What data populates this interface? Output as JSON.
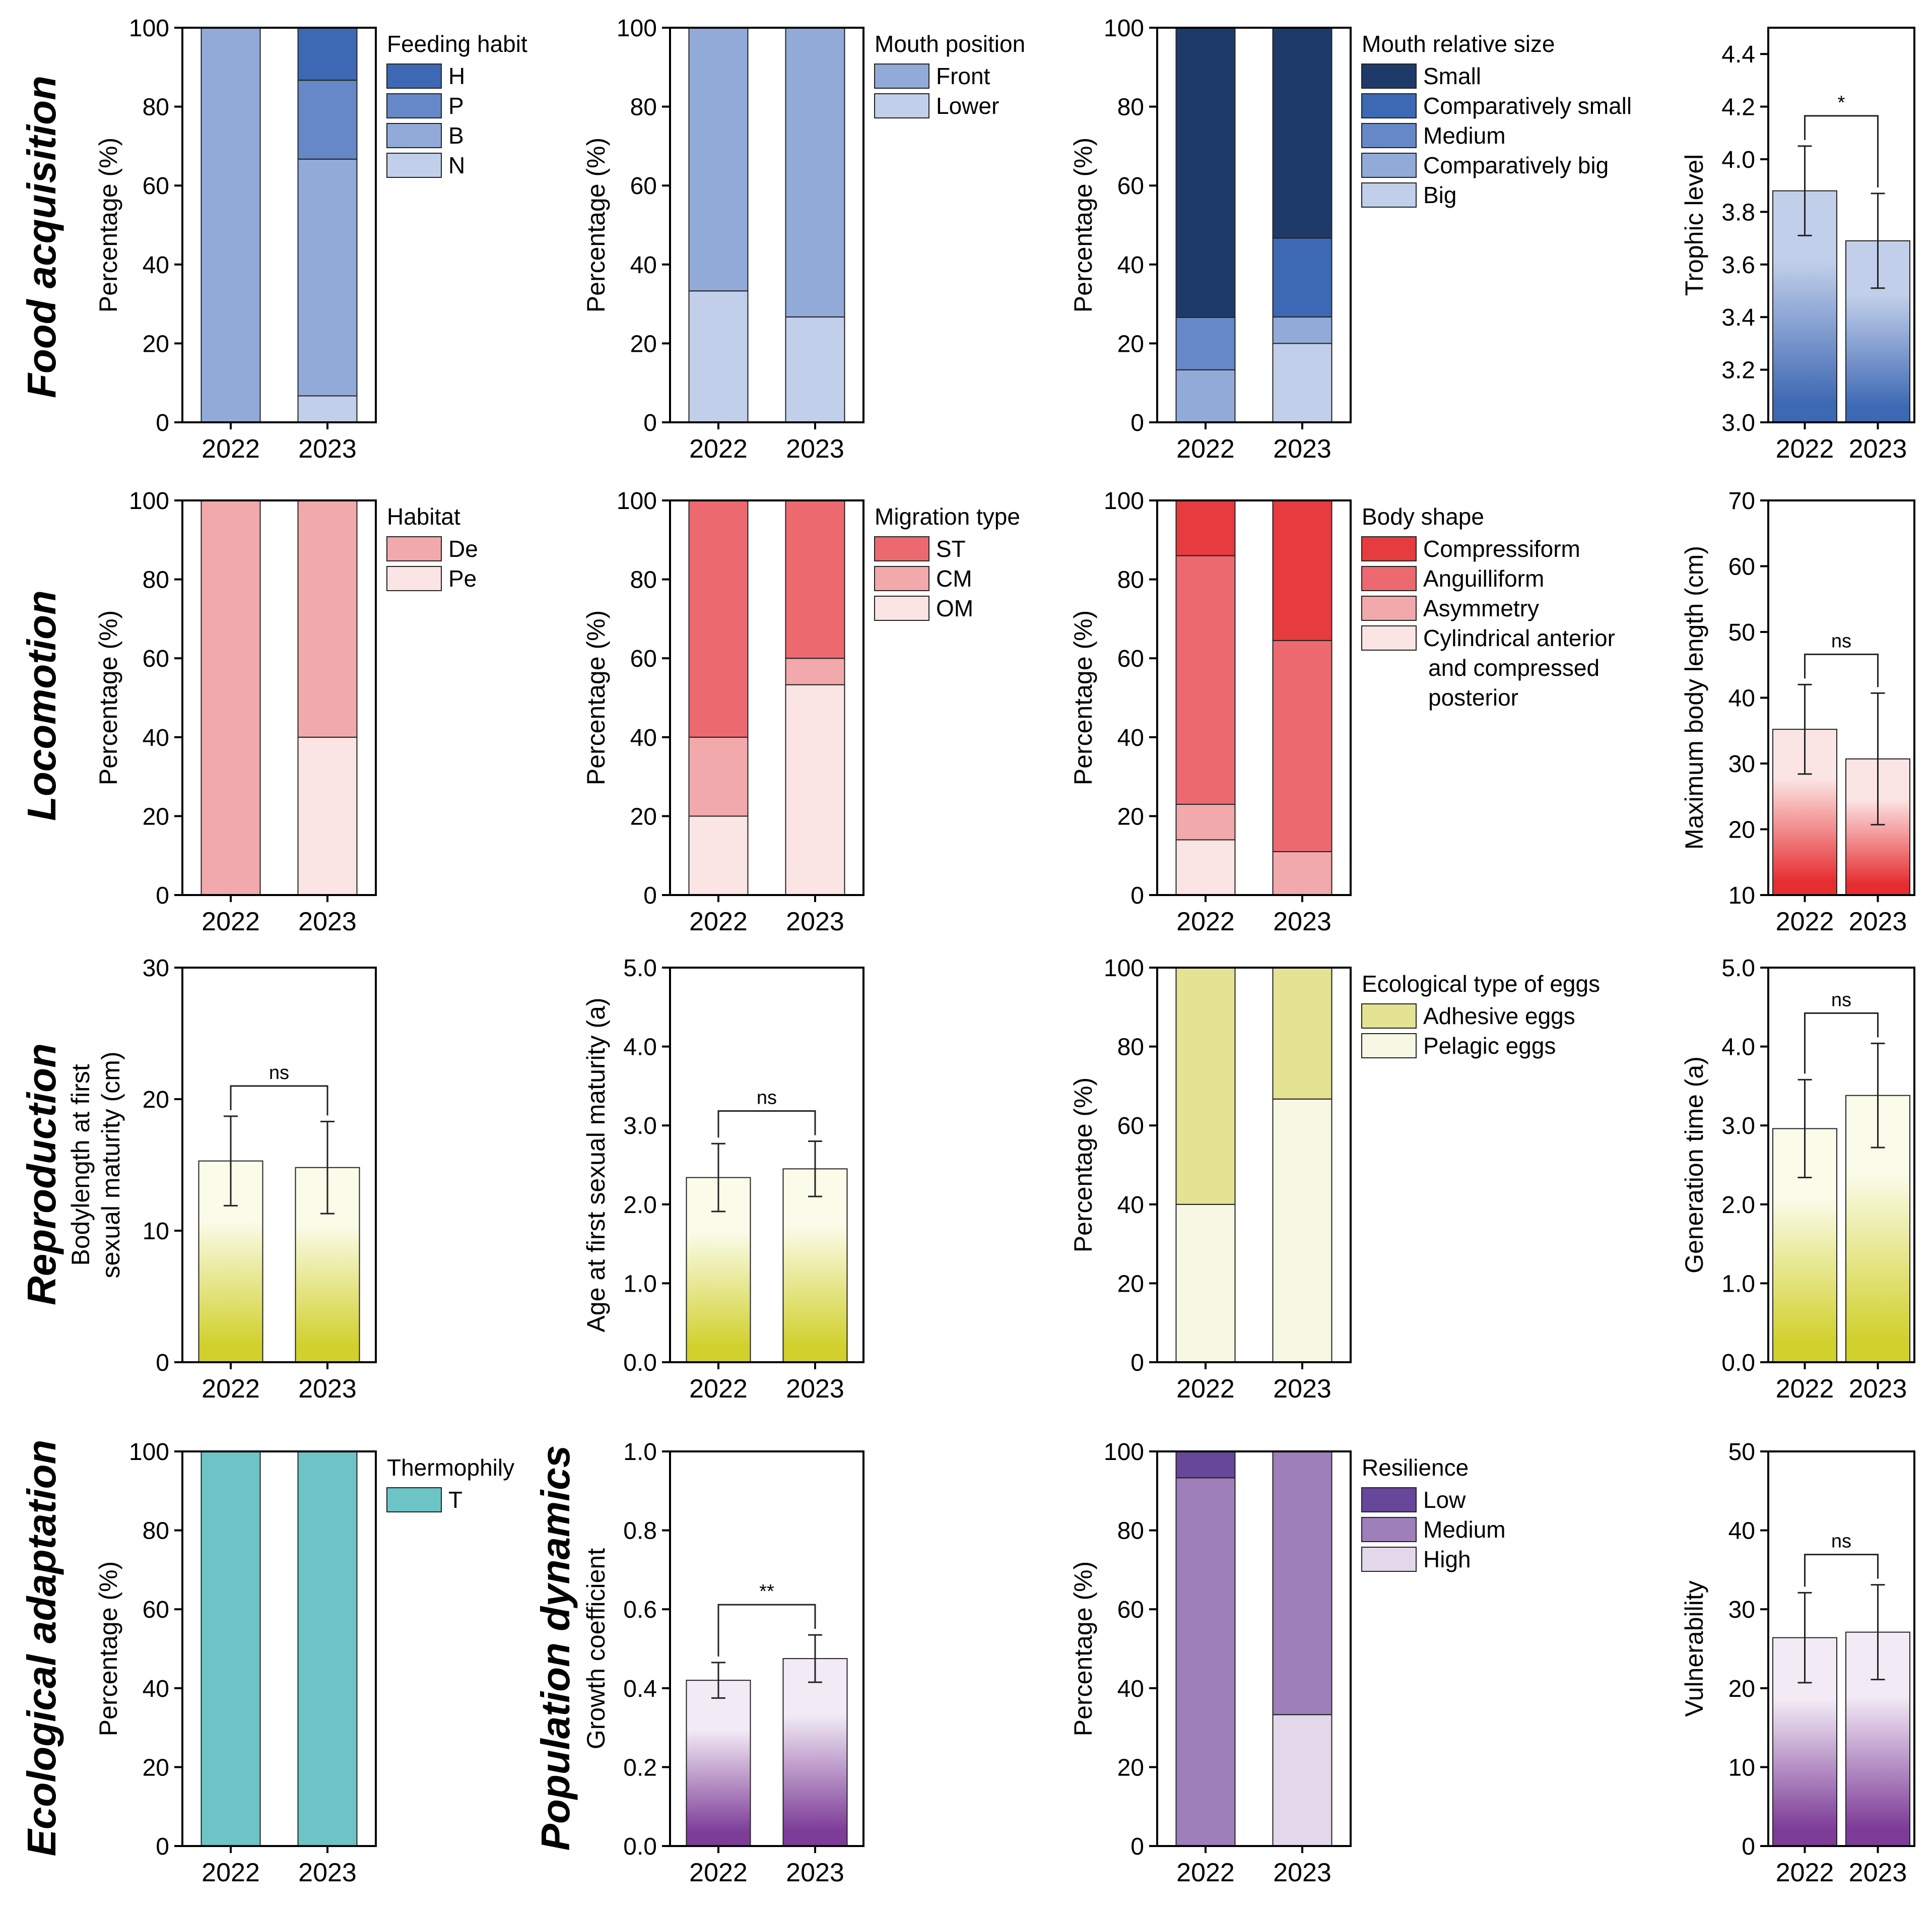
{
  "row_titles": [
    "Food acquisition",
    "Locomotion",
    "Reproduction",
    "Ecological adaptation",
    "Population dynamics"
  ],
  "chart_data": [
    {
      "id": "feeding",
      "type": "stacked_bar",
      "row": 0,
      "col": 0,
      "ylabel": "Percentage (%)",
      "ylim": [
        0,
        100
      ],
      "yticks": [
        "0",
        "20",
        "40",
        "60",
        "80",
        "100"
      ],
      "categories": [
        "2022",
        "2023"
      ],
      "legend_title": "Feeding habit",
      "series": [
        {
          "name": "N",
          "color": "#c2cfea",
          "values": [
            0,
            6.7
          ]
        },
        {
          "name": "B",
          "color": "#91aad8",
          "values": [
            100,
            60
          ]
        },
        {
          "name": "P",
          "color": "#6688c6",
          "values": [
            0,
            20
          ]
        },
        {
          "name": "H",
          "color": "#3d68b3",
          "values": [
            0,
            13.3
          ]
        }
      ],
      "legend": [
        {
          "name": "H",
          "color": "#3d68b3"
        },
        {
          "name": "P",
          "color": "#6688c6"
        },
        {
          "name": "B",
          "color": "#91aad8"
        },
        {
          "name": "N",
          "color": "#c2cfea"
        }
      ]
    },
    {
      "id": "mouthpos",
      "type": "stacked_bar",
      "row": 0,
      "col": 1,
      "ylabel": "Percentage (%)",
      "ylim": [
        0,
        100
      ],
      "yticks": [
        "0",
        "20",
        "40",
        "60",
        "80",
        "100"
      ],
      "categories": [
        "2022",
        "2023"
      ],
      "legend_title": "Mouth position",
      "series": [
        {
          "name": "Lower",
          "color": "#c2cfea",
          "values": [
            33.3,
            26.7
          ]
        },
        {
          "name": "Front",
          "color": "#91aad8",
          "values": [
            66.7,
            73.3
          ]
        }
      ],
      "legend": [
        {
          "name": "Front",
          "color": "#91aad8"
        },
        {
          "name": "Lower",
          "color": "#c2cfea"
        }
      ]
    },
    {
      "id": "mouthsize",
      "type": "stacked_bar",
      "row": 0,
      "col": 2,
      "ylabel": "Percentage (%)",
      "ylim": [
        0,
        100
      ],
      "yticks": [
        "0",
        "20",
        "40",
        "60",
        "80",
        "100"
      ],
      "categories": [
        "2022",
        "2023"
      ],
      "legend_title": "Mouth relative size",
      "series": [
        {
          "name": "Big",
          "color": "#c2cfea",
          "values": [
            0,
            20
          ]
        },
        {
          "name": "Comparatively big",
          "color": "#91aad8",
          "values": [
            13.3,
            6.7
          ]
        },
        {
          "name": "Medium",
          "color": "#6688c6",
          "values": [
            13.3,
            0
          ]
        },
        {
          "name": "Comparatively small",
          "color": "#3d68b3",
          "values": [
            0,
            20
          ]
        },
        {
          "name": "Small",
          "color": "#1e3a68",
          "values": [
            73.3,
            53.3
          ]
        }
      ],
      "legend": [
        {
          "name": "Small",
          "color": "#1e3a68"
        },
        {
          "name": "Comparatively small",
          "color": "#3d68b3"
        },
        {
          "name": "Medium",
          "color": "#6688c6"
        },
        {
          "name": "Comparatively big",
          "color": "#91aad8"
        },
        {
          "name": "Big",
          "color": "#c2cfea"
        }
      ]
    },
    {
      "id": "trophic",
      "type": "bar",
      "row": 0,
      "col": 3,
      "ylabel": "Trophic level",
      "ylim": [
        3.0,
        4.5
      ],
      "yticks": [
        "3.0",
        "3.2",
        "3.4",
        "3.6",
        "3.8",
        "4.0",
        "4.2",
        "4.4"
      ],
      "categories": [
        "2022",
        "2023"
      ],
      "values": [
        3.88,
        3.69
      ],
      "errors": [
        0.17,
        0.18
      ],
      "significance": "*",
      "gradient": [
        "#c2cfea",
        "#3d68b3"
      ]
    },
    {
      "id": "habitat",
      "type": "stacked_bar",
      "row": 1,
      "col": 0,
      "ylabel": "Percentage (%)",
      "ylim": [
        0,
        100
      ],
      "yticks": [
        "0",
        "20",
        "40",
        "60",
        "80",
        "100"
      ],
      "categories": [
        "2022",
        "2023"
      ],
      "legend_title": "Habitat",
      "series": [
        {
          "name": "Pe",
          "color": "#fbe4e4",
          "values": [
            0,
            40
          ]
        },
        {
          "name": "De",
          "color": "#f2a9ab",
          "values": [
            100,
            60
          ]
        }
      ],
      "legend": [
        {
          "name": "De",
          "color": "#f2a9ab"
        },
        {
          "name": "Pe",
          "color": "#fbe4e4"
        }
      ]
    },
    {
      "id": "migration",
      "type": "stacked_bar",
      "row": 1,
      "col": 1,
      "ylabel": "Percentage (%)",
      "ylim": [
        0,
        100
      ],
      "yticks": [
        "0",
        "20",
        "40",
        "60",
        "80",
        "100"
      ],
      "categories": [
        "2022",
        "2023"
      ],
      "legend_title": "Migration type",
      "series": [
        {
          "name": "OM",
          "color": "#fbe4e4",
          "values": [
            20,
            53.3
          ]
        },
        {
          "name": "CM",
          "color": "#f2a9ab",
          "values": [
            20,
            6.7
          ]
        },
        {
          "name": "ST",
          "color": "#ec6a6f",
          "values": [
            60,
            40
          ]
        }
      ],
      "legend": [
        {
          "name": "ST",
          "color": "#ec6a6f"
        },
        {
          "name": "CM",
          "color": "#f2a9ab"
        },
        {
          "name": "OM",
          "color": "#fbe4e4"
        }
      ]
    },
    {
      "id": "bodyshape",
      "type": "stacked_bar",
      "row": 1,
      "col": 2,
      "ylabel": "Percentage (%)",
      "ylim": [
        0,
        100
      ],
      "yticks": [
        "0",
        "20",
        "40",
        "60",
        "80",
        "100"
      ],
      "categories": [
        "2022",
        "2023"
      ],
      "legend_title": "Body shape",
      "series": [
        {
          "name": "Cylindrical anterior and compressed posterior",
          "color": "#fbe4e4",
          "values": [
            14,
            0
          ]
        },
        {
          "name": "Asymmetry",
          "color": "#f2a9ab",
          "values": [
            9,
            11
          ]
        },
        {
          "name": "Anguilliform",
          "color": "#ec6a6f",
          "values": [
            63,
            53.5
          ]
        },
        {
          "name": "Compressiform",
          "color": "#e63b3f",
          "values": [
            14,
            35.5
          ]
        }
      ],
      "legend": [
        {
          "name": "Compressiform",
          "color": "#e63b3f"
        },
        {
          "name": "Anguilliform",
          "color": "#ec6a6f"
        },
        {
          "name": "Asymmetry",
          "color": "#f2a9ab"
        },
        {
          "name": "Cylindrical anterior",
          "color": "#fbe4e4"
        }
      ],
      "legend_extra": [
        "and compressed",
        "posterior"
      ]
    },
    {
      "id": "bodylength",
      "type": "bar",
      "row": 1,
      "col": 3,
      "ylabel": "Maximum body length (cm)",
      "ylim": [
        10,
        70
      ],
      "yticks": [
        "10",
        "20",
        "30",
        "40",
        "50",
        "60",
        "70"
      ],
      "categories": [
        "2022",
        "2023"
      ],
      "values": [
        35.2,
        30.7
      ],
      "errors": [
        6.8,
        10
      ],
      "significance": "ns",
      "gradient": [
        "#fbe4e4",
        "#e62e31"
      ]
    },
    {
      "id": "bodylenmat",
      "type": "bar",
      "row": 2,
      "col": 0,
      "ylabel": "Bodylength at first",
      "ylabel2": "sexual maturity (cm)",
      "ylim": [
        0,
        30
      ],
      "yticks": [
        "0",
        "10",
        "20",
        "30"
      ],
      "categories": [
        "2022",
        "2023"
      ],
      "values": [
        15.3,
        14.8
      ],
      "errors": [
        3.4,
        3.5
      ],
      "significance": "ns",
      "gradient": [
        "#fafbe8",
        "#d1d02c"
      ]
    },
    {
      "id": "agemat",
      "type": "bar",
      "row": 2,
      "col": 1,
      "ylabel": "Age at first sexual maturity (a)",
      "ylim": [
        0,
        5
      ],
      "yticks": [
        "0.0",
        "1.0",
        "2.0",
        "3.0",
        "4.0",
        "5.0"
      ],
      "categories": [
        "2022",
        "2023"
      ],
      "values": [
        2.34,
        2.45
      ],
      "errors": [
        0.43,
        0.35
      ],
      "significance": "ns",
      "gradient": [
        "#fafbe8",
        "#d1d02c"
      ]
    },
    {
      "id": "eggs",
      "type": "stacked_bar",
      "row": 2,
      "col": 2,
      "ylabel": "Percentage (%)",
      "ylim": [
        0,
        100
      ],
      "yticks": [
        "0",
        "20",
        "40",
        "60",
        "80",
        "100"
      ],
      "categories": [
        "2022",
        "2023"
      ],
      "legend_title": "Ecological type of eggs",
      "series": [
        {
          "name": "Pelagic eggs",
          "color": "#f7f8e4",
          "values": [
            40,
            66.7
          ]
        },
        {
          "name": "Adhesive eggs",
          "color": "#e3e393",
          "values": [
            60,
            33.3
          ]
        }
      ],
      "legend": [
        {
          "name": "Adhesive eggs",
          "color": "#e3e393"
        },
        {
          "name": "Pelagic eggs",
          "color": "#f7f8e4"
        }
      ]
    },
    {
      "id": "gentime",
      "type": "bar",
      "row": 2,
      "col": 3,
      "ylabel": "Generation time (a)",
      "ylim": [
        0,
        5
      ],
      "yticks": [
        "0.0",
        "1.0",
        "2.0",
        "3.0",
        "4.0",
        "5.0"
      ],
      "categories": [
        "2022",
        "2023"
      ],
      "values": [
        2.96,
        3.38
      ],
      "errors": [
        0.62,
        0.66
      ],
      "significance": "ns",
      "gradient": [
        "#fafbe8",
        "#d1d02c"
      ]
    },
    {
      "id": "thermo",
      "type": "stacked_bar",
      "row": 3,
      "col": 0,
      "ylabel": "Percentage (%)",
      "ylim": [
        0,
        100
      ],
      "yticks": [
        "0",
        "20",
        "40",
        "60",
        "80",
        "100"
      ],
      "categories": [
        "2022",
        "2023"
      ],
      "legend_title": "Thermophily",
      "series": [
        {
          "name": "T",
          "color": "#6cc4c6",
          "values": [
            100,
            100
          ]
        }
      ],
      "legend": [
        {
          "name": "T",
          "color": "#6cc4c6"
        }
      ]
    },
    {
      "id": "growth",
      "type": "bar",
      "row": 3,
      "col": 1,
      "ylabel": "Growth coefficient",
      "ylim": [
        0,
        1
      ],
      "yticks": [
        "0.0",
        "0.2",
        "0.4",
        "0.6",
        "0.8",
        "1.0"
      ],
      "categories": [
        "2022",
        "2023"
      ],
      "values": [
        0.42,
        0.475
      ],
      "errors": [
        0.045,
        0.06
      ],
      "significance": "**",
      "gradient": [
        "#f2eaf5",
        "#7d3c98"
      ]
    },
    {
      "id": "resilience",
      "type": "stacked_bar",
      "row": 3,
      "col": 2,
      "ylabel": "Percentage (%)",
      "ylim": [
        0,
        100
      ],
      "yticks": [
        "0",
        "20",
        "40",
        "60",
        "80",
        "100"
      ],
      "categories": [
        "2022",
        "2023"
      ],
      "legend_title": "Resilience",
      "series": [
        {
          "name": "High",
          "color": "#e3d7ea",
          "values": [
            0,
            33.3
          ]
        },
        {
          "name": "Medium",
          "color": "#9e7fb9",
          "values": [
            93.3,
            66.7
          ]
        },
        {
          "name": "Low",
          "color": "#66479a",
          "values": [
            6.7,
            0
          ]
        }
      ],
      "legend": [
        {
          "name": "Low",
          "color": "#66479a"
        },
        {
          "name": "Medium",
          "color": "#9e7fb9"
        },
        {
          "name": "High",
          "color": "#e3d7ea"
        }
      ]
    },
    {
      "id": "vuln",
      "type": "bar",
      "row": 3,
      "col": 3,
      "ylabel": "Vulnerability",
      "ylim": [
        0,
        50
      ],
      "yticks": [
        "0",
        "10",
        "20",
        "30",
        "40",
        "50"
      ],
      "categories": [
        "2022",
        "2023"
      ],
      "values": [
        26.4,
        27.1
      ],
      "errors": [
        5.7,
        6
      ],
      "significance": "ns",
      "gradient": [
        "#f2eaf5",
        "#7d3c98"
      ]
    }
  ]
}
